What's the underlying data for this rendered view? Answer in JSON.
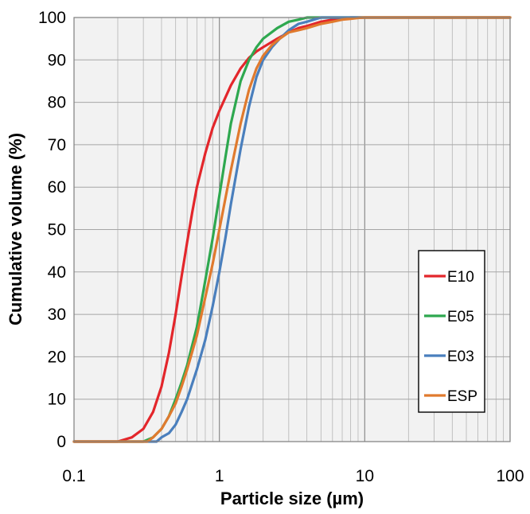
{
  "chart_data": {
    "type": "line",
    "xlabel": "Particle size  (µm)",
    "ylabel": "Cumulative volume  (%)",
    "x_scale": "log",
    "xlim": [
      0.1,
      100
    ],
    "ylim": [
      0,
      100
    ],
    "x_ticks": [
      "0.1",
      "1",
      "10",
      "100"
    ],
    "y_ticks": [
      "0",
      "10",
      "20",
      "30",
      "40",
      "50",
      "60",
      "70",
      "80",
      "90",
      "100"
    ],
    "grid": true,
    "legend_position": "bottom-right",
    "series": [
      {
        "name": "E10",
        "color": "#e3262b",
        "x": [
          0.1,
          0.2,
          0.25,
          0.3,
          0.35,
          0.4,
          0.45,
          0.5,
          0.55,
          0.6,
          0.65,
          0.7,
          0.8,
          0.9,
          1.0,
          1.2,
          1.4,
          1.6,
          1.8,
          2.0,
          2.5,
          3.0,
          3.5,
          4.0,
          5.0,
          6.0,
          8.0,
          10,
          100
        ],
        "y": [
          0,
          0,
          1,
          3,
          7,
          13,
          21,
          30,
          39,
          47,
          54,
          60,
          68,
          74,
          78,
          84,
          88,
          90.5,
          92,
          93,
          95,
          96.5,
          97.5,
          98,
          99,
          99.5,
          100,
          100,
          100
        ]
      },
      {
        "name": "E05",
        "color": "#2ea84f",
        "x": [
          0.1,
          0.3,
          0.35,
          0.4,
          0.45,
          0.5,
          0.55,
          0.6,
          0.7,
          0.8,
          0.9,
          1.0,
          1.1,
          1.2,
          1.4,
          1.6,
          1.8,
          2.0,
          2.5,
          3.0,
          3.5,
          4.0,
          5.0,
          6.0,
          100
        ],
        "y": [
          0,
          0,
          1,
          3,
          6,
          10,
          14,
          18,
          27,
          38,
          48,
          58,
          67,
          75,
          85,
          90,
          93,
          95,
          97.5,
          99,
          99.5,
          100,
          100,
          100,
          100
        ]
      },
      {
        "name": "E03",
        "color": "#4a7fbd",
        "x": [
          0.1,
          0.37,
          0.4,
          0.45,
          0.5,
          0.55,
          0.6,
          0.7,
          0.8,
          0.9,
          1.0,
          1.1,
          1.2,
          1.4,
          1.6,
          1.8,
          2.0,
          2.3,
          2.6,
          3.0,
          3.5,
          4.0,
          5.0,
          6.0,
          8.0,
          100
        ],
        "y": [
          0,
          0,
          1,
          2,
          4,
          7,
          10,
          17,
          24,
          32,
          40,
          48,
          56,
          69,
          79,
          86,
          90,
          93,
          95,
          97,
          98.5,
          99,
          100,
          100,
          100,
          100
        ]
      },
      {
        "name": "ESP",
        "color": "#e07a2e",
        "x": [
          0.1,
          0.32,
          0.35,
          0.4,
          0.45,
          0.5,
          0.55,
          0.6,
          0.7,
          0.8,
          0.9,
          1.0,
          1.2,
          1.4,
          1.6,
          1.8,
          2.0,
          2.3,
          2.6,
          3.0,
          3.5,
          4.0,
          5.0,
          6.0,
          7.0,
          8.0,
          9.0,
          10,
          100
        ],
        "y": [
          0,
          0,
          1,
          3,
          6,
          9,
          13,
          17,
          25,
          34,
          42,
          50,
          64,
          75,
          83,
          88,
          91,
          93.5,
          95,
          96.5,
          97,
          97.5,
          98.5,
          99,
          99.5,
          99.7,
          99.9,
          100,
          100
        ]
      }
    ]
  }
}
